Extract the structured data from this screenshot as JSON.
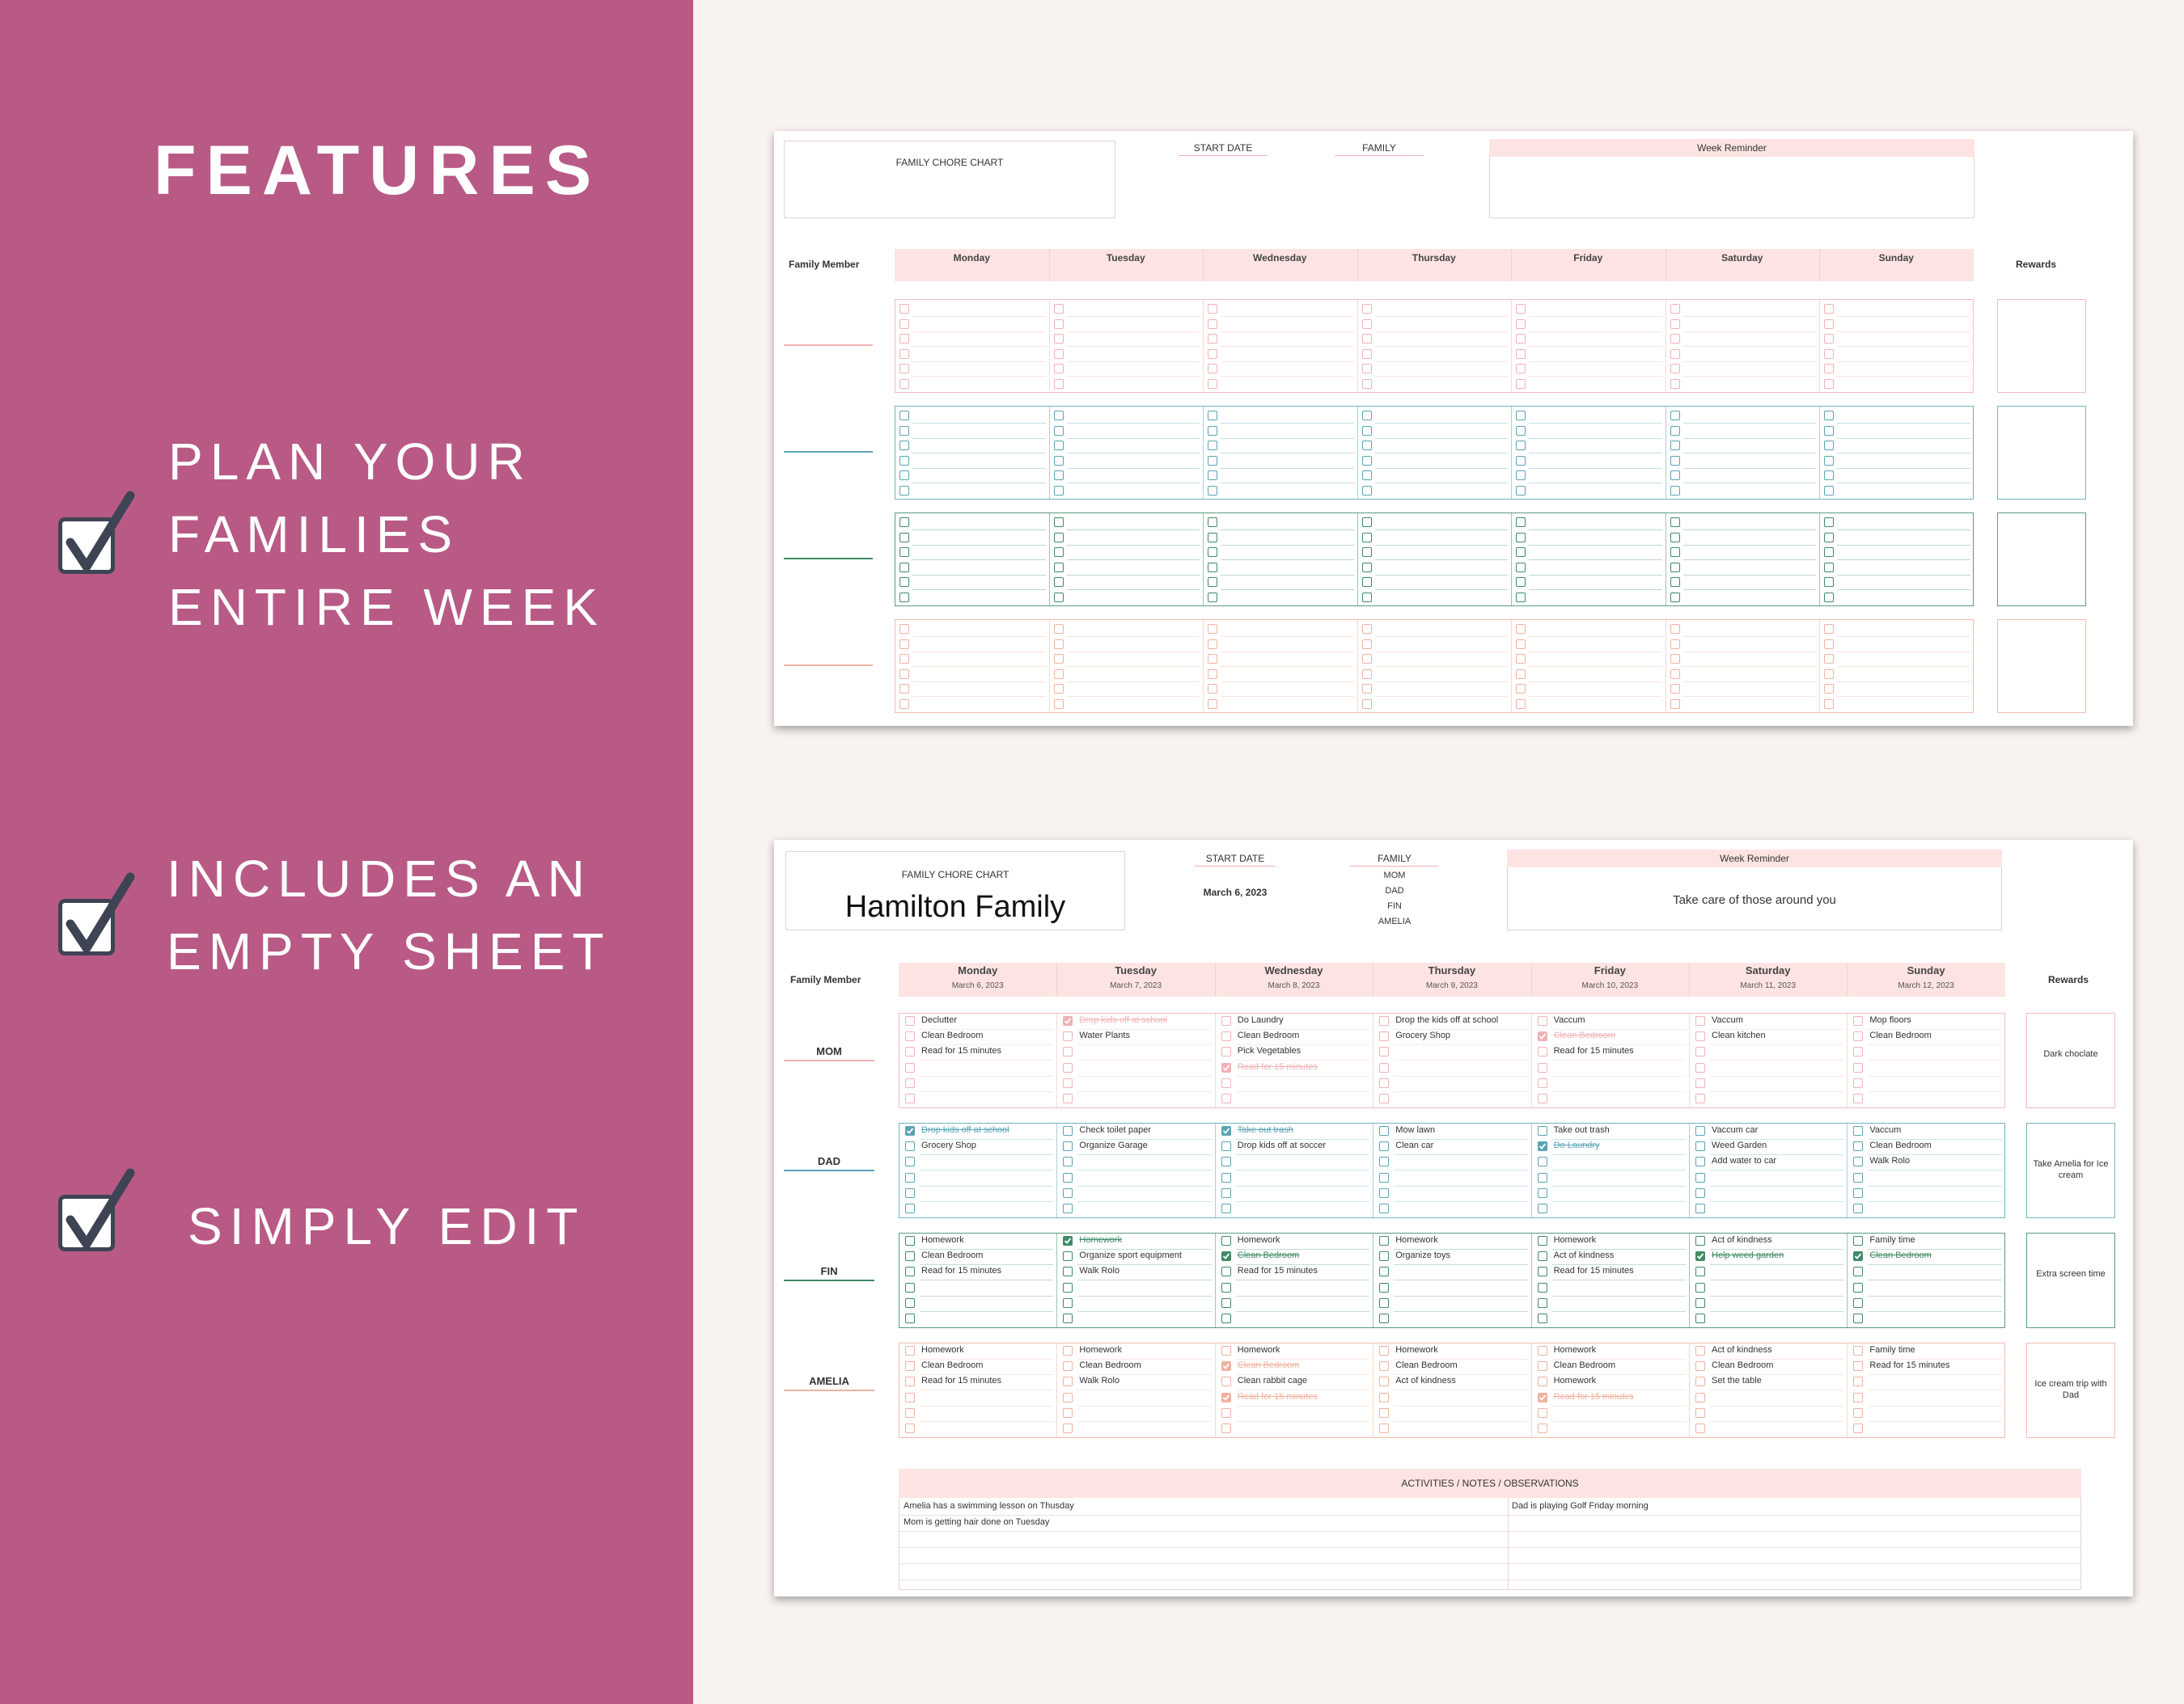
{
  "left": {
    "title": "FEATURES",
    "features": [
      {
        "lines": [
          "PLAN YOUR",
          "FAMILIES",
          "ENTIRE WEEK"
        ]
      },
      {
        "lines": [
          "INCLUDES AN",
          "EMPTY SHEET"
        ]
      },
      {
        "lines": [
          "SIMPLY EDIT"
        ]
      }
    ]
  },
  "colors": {
    "panel": "#b85a85",
    "bg": "#f8f3f1",
    "mom": "#f1b2b5",
    "dad": "#5aa4b5",
    "fin": "#3f8b66",
    "amelia": "#f0b29e"
  },
  "sheet1": {
    "chart_title": "FAMILY CHORE CHART",
    "start_date_label": "START DATE",
    "family_label": "FAMILY",
    "week_reminder_label": "Week Reminder",
    "member_header": "Family Member",
    "rewards_header": "Rewards",
    "days": [
      "Monday",
      "Tuesday",
      "Wednesday",
      "Thursday",
      "Friday",
      "Saturday",
      "Sunday"
    ]
  },
  "sheet2": {
    "chart_title": "FAMILY CHORE CHART",
    "family_name": "Hamilton Family",
    "start_date_label": "START DATE",
    "start_date": "March 6, 2023",
    "family_label": "FAMILY",
    "family_members": [
      "MOM",
      "DAD",
      "FIN",
      "AMELIA"
    ],
    "week_reminder_label": "Week Reminder",
    "week_reminder": "Take care of those around you",
    "member_header": "Family Member",
    "rewards_header": "Rewards",
    "days": [
      {
        "name": "Monday",
        "date": "March 6, 2023"
      },
      {
        "name": "Tuesday",
        "date": "March 7, 2023"
      },
      {
        "name": "Wednesday",
        "date": "March 8, 2023"
      },
      {
        "name": "Thursday",
        "date": "March 9, 2023"
      },
      {
        "name": "Friday",
        "date": "March 10, 2023"
      },
      {
        "name": "Saturday",
        "date": "March 11, 2023"
      },
      {
        "name": "Sunday",
        "date": "March 12, 2023"
      }
    ],
    "members": [
      {
        "name": "MOM",
        "reward": "Dark choclate",
        "days": [
          [
            [
              "Declutter",
              false
            ],
            [
              "Clean Bedroom",
              false
            ],
            [
              "Read for 15 minutes",
              false
            ]
          ],
          [
            [
              "Drop kids off at school",
              true
            ],
            [
              "Water Plants",
              false
            ]
          ],
          [
            [
              "Do Laundry",
              false
            ],
            [
              "Clean Bedroom",
              false
            ],
            [
              "Pick Vegetables",
              false
            ],
            [
              "Read for 15 minutes",
              true
            ]
          ],
          [
            [
              "Drop the kids off at school",
              false
            ],
            [
              "Grocery Shop",
              false
            ]
          ],
          [
            [
              "Vaccum",
              false
            ],
            [
              "Clean Bedroom",
              true
            ],
            [
              "Read for 15 minutes",
              false
            ]
          ],
          [
            [
              "Vaccum",
              false
            ],
            [
              "Clean kitchen",
              false
            ]
          ],
          [
            [
              "Mop floors",
              false
            ],
            [
              "Clean Bedroom",
              false
            ]
          ]
        ]
      },
      {
        "name": "DAD",
        "reward": "Take Amelia for Ice cream",
        "days": [
          [
            [
              "Drop kids off at school",
              true
            ],
            [
              "Grocery Shop",
              false
            ]
          ],
          [
            [
              "Check toilet paper",
              false
            ],
            [
              "Organize Garage",
              false
            ]
          ],
          [
            [
              "Take out trash",
              true
            ],
            [
              "Drop kids off at soccer",
              false
            ]
          ],
          [
            [
              "Mow lawn",
              false
            ],
            [
              "Clean car",
              false
            ]
          ],
          [
            [
              "Take out trash",
              false
            ],
            [
              "Do Laundry",
              true
            ]
          ],
          [
            [
              "Vaccum car",
              false
            ],
            [
              "Weed Garden",
              false
            ],
            [
              "Add water to car",
              false
            ]
          ],
          [
            [
              "Vaccum",
              false
            ],
            [
              "Clean Bedroom",
              false
            ],
            [
              "Walk Rolo",
              false
            ]
          ]
        ]
      },
      {
        "name": "FIN",
        "reward": "Extra screen time",
        "days": [
          [
            [
              "Homework",
              false
            ],
            [
              "Clean Bedroom",
              false
            ],
            [
              "Read for 15 minutes",
              false
            ]
          ],
          [
            [
              "Homework",
              true
            ],
            [
              "Organize sport equipment",
              false
            ],
            [
              "Walk Rolo",
              false
            ]
          ],
          [
            [
              "Homework",
              false
            ],
            [
              "Clean Bedroom",
              true
            ],
            [
              "Read for 15 minutes",
              false
            ]
          ],
          [
            [
              "Homework",
              false
            ],
            [
              "Organize toys",
              false
            ]
          ],
          [
            [
              "Homework",
              false
            ],
            [
              "Act of kindness",
              false
            ],
            [
              "Read for 15 minutes",
              false
            ]
          ],
          [
            [
              "Act of kindness",
              false
            ],
            [
              "Help weed garden",
              true
            ]
          ],
          [
            [
              "Family time",
              false
            ],
            [
              "Clean Bedroom",
              true
            ]
          ]
        ]
      },
      {
        "name": "AMELIA",
        "reward": "Ice cream trip with Dad",
        "days": [
          [
            [
              "Homework",
              false
            ],
            [
              "Clean Bedroom",
              false
            ],
            [
              "Read for 15 minutes",
              false
            ]
          ],
          [
            [
              "Homework",
              false
            ],
            [
              "Clean Bedroom",
              false
            ],
            [
              "Walk Rolo",
              false
            ]
          ],
          [
            [
              "Homework",
              false
            ],
            [
              "Clean Bedroom",
              true
            ],
            [
              "Clean rabbit cage",
              false
            ],
            [
              "Read for 15 minutes",
              true
            ]
          ],
          [
            [
              "Homework",
              false
            ],
            [
              "Clean Bedroom",
              false
            ],
            [
              "Act of kindness",
              false
            ]
          ],
          [
            [
              "Homework",
              false
            ],
            [
              "Clean Bedroom",
              false
            ],
            [
              "Homework",
              false
            ],
            [
              "Read for 15 minutes",
              true
            ]
          ],
          [
            [
              "Act of kindness",
              false
            ],
            [
              "Clean Bedroom",
              false
            ],
            [
              "Set the table",
              false
            ]
          ],
          [
            [
              "Family time",
              false
            ],
            [
              "Read for 15 minutes",
              false
            ]
          ]
        ]
      }
    ],
    "notes_header": "ACTIVITIES / NOTES / OBSERVATIONS",
    "notes_left": [
      "Amelia has a swimming lesson on Thusday",
      "Mom is getting hair done on Tuesday"
    ],
    "notes_right": [
      "Dad is playing Golf Friday morning"
    ]
  }
}
